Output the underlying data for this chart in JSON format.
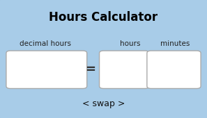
{
  "title": "Hours Calculator",
  "label_decimal": "decimal hours",
  "label_hours": "hours",
  "label_minutes": "minutes",
  "swap_text": "< swap >",
  "bg_color": "#a8cce8",
  "box_color": "#ffffff",
  "border_color": "#8ab0d0",
  "box_border_color": "#aaaaaa",
  "title_color": "#000000",
  "label_color": "#222222",
  "swap_color": "#111111",
  "figsize": [
    2.97,
    1.7
  ],
  "dpi": 100,
  "title_fontsize": 12,
  "label_fontsize": 7.5,
  "swap_fontsize": 9
}
